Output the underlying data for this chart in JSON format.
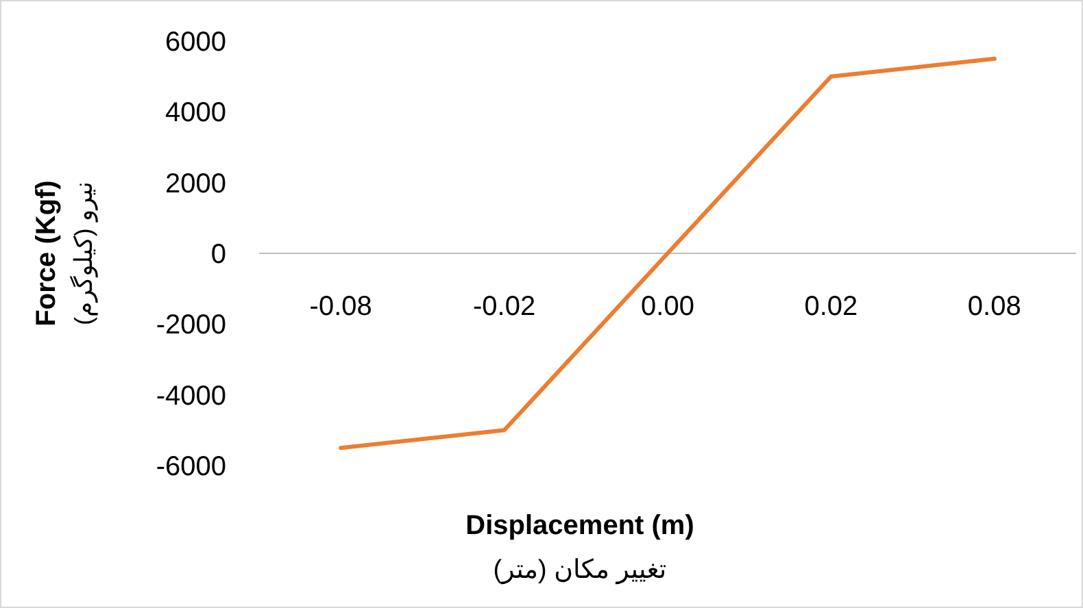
{
  "chart_data": {
    "type": "line",
    "xlabel": "Displacement (m)\nتغییر مکان (متر)",
    "ylabel": "Force (Kgf)\nنیرو (کیلوگرم)",
    "categories": [
      "-0.08",
      "-0.02",
      "0.00",
      "0.02",
      "0.08"
    ],
    "series": [
      {
        "color": "#ed7d31",
        "values": [
          -5500,
          -5000,
          0,
          5000,
          5500
        ]
      }
    ],
    "ylim": [
      -6000,
      6000
    ],
    "yticks": [
      -6000,
      -4000,
      -2000,
      0,
      2000,
      4000,
      6000
    ]
  }
}
